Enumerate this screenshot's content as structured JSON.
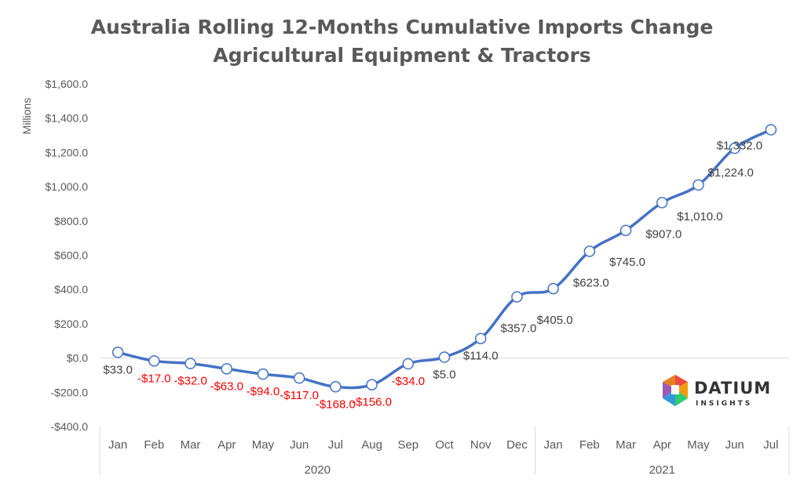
{
  "chart_data": {
    "type": "line",
    "title": "Australia Rolling 12-Months Cumulative Imports Change",
    "subtitle": "Agricultural Equipment & Tractors",
    "ylabel": "Millions",
    "ylim": [
      -400,
      1600
    ],
    "yticks": [
      -400,
      -200,
      0,
      200,
      400,
      600,
      800,
      1000,
      1200,
      1400,
      1600
    ],
    "ytick_labels": [
      "-$400.0",
      "-$200.0",
      "$0.0",
      "$200.0",
      "$400.0",
      "$600.0",
      "$800.0",
      "$1,000.0",
      "$1,200.0",
      "$1,400.0",
      "$1,600.0"
    ],
    "categories": [
      "Jan",
      "Feb",
      "Mar",
      "Apr",
      "May",
      "Jun",
      "Jul",
      "Aug",
      "Sep",
      "Oct",
      "Nov",
      "Dec",
      "Jan",
      "Feb",
      "Mar",
      "Apr",
      "May",
      "Jun",
      "Jul"
    ],
    "groups": [
      {
        "label": "2020",
        "count": 12
      },
      {
        "label": "2021",
        "count": 7
      }
    ],
    "values": [
      33,
      -17,
      -32,
      -63,
      -94,
      -117,
      -168,
      -156,
      -34,
      5,
      114,
      357,
      405,
      623,
      745,
      907,
      1010,
      1224,
      1332
    ],
    "labels": [
      "$33.0",
      "-$17.0",
      "-$32.0",
      "-$63.0",
      "-$94.0",
      "-$117.0",
      "-$168.0",
      "-$156.0",
      "-$34.0",
      "$5.0",
      "$114.0",
      "$357.0",
      "$405.0",
      "$623.0",
      "$745.0",
      "$907.0",
      "$1,010.0",
      "$1,224.0",
      "$1,332.0"
    ],
    "grid": false,
    "colors": {
      "line": "#4472C4",
      "positive_label": "#404040",
      "negative_label": "#FF0000",
      "axis": "#D9D9D9"
    }
  },
  "logo": {
    "name": "DATIUM",
    "tagline": "INSIGHTS"
  }
}
